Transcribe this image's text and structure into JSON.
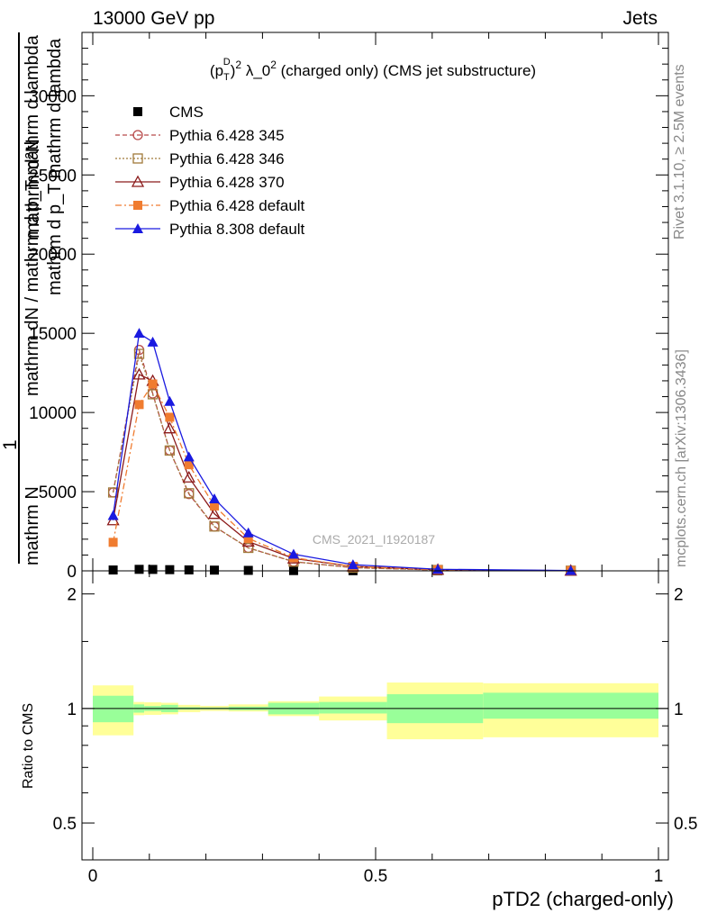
{
  "header": {
    "energy_label": "13000 GeV pp",
    "process_label": "Jets"
  },
  "side": {
    "rivet_label": "Rivet 3.1.10, ≥ 2.5M events",
    "mcplots_label": "mcplots.cern.ch [arXiv:1306.3436]"
  },
  "chart_data": {
    "type": "line",
    "title": "(p_T^D)^2 λ_0^2 (charged only) (CMS jet substructure)",
    "title_parts": {
      "pre": "(p",
      "sub1": "T",
      "sup1": "D",
      "mid": ")",
      "sup2": "2",
      "post1": " λ_0",
      "sup3": "2",
      "post2": " (charged only) (CMS jet substructure)"
    },
    "watermark": "CMS_2021_I1920187",
    "xlabel": "pTD2 (charged-only)",
    "ylabel": "1 / mathrm N  mathrm dN / mathrm d p_T mathrm d lambda",
    "ylabel_parts": {
      "numerator": "1",
      "denominator": "mathrm N",
      "main": "mathrm dN / mathrm d p_T mathrm d lambda",
      "overlay1": "mathrm d²N",
      "overlay2": "mathrm d p_T mathrm d lambda"
    },
    "ratio_ylabel": "Ratio to CMS",
    "xlim": [
      0,
      1
    ],
    "ylim": [
      0,
      34000
    ],
    "ratio_ylim": [
      0.4,
      2.3
    ],
    "x_ticks": [
      "0",
      "0.5",
      "1"
    ],
    "y_ticks": [
      "0",
      "5000",
      "10000",
      "15000",
      "20000",
      "25000",
      "30000"
    ],
    "ratio_ticks": [
      "0.5",
      "1",
      "2"
    ],
    "x": [
      0.036,
      0.082,
      0.106,
      0.136,
      0.17,
      0.215,
      0.275,
      0.355,
      0.46,
      0.61,
      0.845
    ],
    "series": [
      {
        "name": "CMS",
        "color": "#000000",
        "marker": "square-filled",
        "dash": "none",
        "values": [
          55,
          95,
          90,
          75,
          60,
          45,
          30,
          18,
          9,
          4,
          1
        ]
      },
      {
        "name": "Pythia 6.428 345",
        "color": "#b84a4a",
        "marker": "circle-open",
        "dash": "5,3",
        "values": [
          4950,
          13950,
          11200,
          7600,
          4850,
          2800,
          1450,
          580,
          200,
          55,
          10
        ]
      },
      {
        "name": "Pythia 6.428 346",
        "color": "#a07a3a",
        "marker": "square-open",
        "dash": "2,2",
        "values": [
          4950,
          13700,
          11150,
          7600,
          4900,
          2800,
          1450,
          580,
          200,
          55,
          10
        ]
      },
      {
        "name": "Pythia 6.428 370",
        "color": "#8b1a1a",
        "marker": "triangle-open",
        "dash": "none",
        "values": [
          3200,
          12400,
          12000,
          9000,
          5900,
          3600,
          1850,
          780,
          280,
          75,
          14
        ]
      },
      {
        "name": "Pythia 6.428 default",
        "color": "#f07c30",
        "marker": "square-filled",
        "dash": "7,3,2,3",
        "values": [
          1800,
          10500,
          11800,
          9700,
          6700,
          4100,
          2050,
          830,
          280,
          70,
          12
        ]
      },
      {
        "name": "Pythia 8.308 default",
        "color": "#1a1ae0",
        "marker": "triangle-filled",
        "dash": "none",
        "values": [
          3500,
          15000,
          14450,
          10700,
          7200,
          4550,
          2400,
          1050,
          390,
          100,
          18
        ]
      }
    ],
    "ratio_bands": {
      "bin_edges": [
        0.0,
        0.072,
        0.091,
        0.121,
        0.151,
        0.19,
        0.24,
        0.31,
        0.4,
        0.52,
        0.69,
        1.0
      ],
      "stat_low": [
        0.92,
        0.975,
        0.985,
        0.978,
        0.993,
        0.995,
        0.99,
        0.965,
        0.97,
        0.915,
        0.94,
        0.94
      ],
      "stat_high": [
        1.08,
        1.025,
        1.015,
        1.022,
        1.008,
        1.006,
        1.011,
        1.035,
        1.04,
        1.09,
        1.1,
        1.06
      ],
      "tot_low": [
        0.85,
        0.96,
        0.962,
        0.965,
        0.978,
        0.985,
        0.982,
        0.955,
        0.93,
        0.83,
        0.84,
        0.88
      ],
      "tot_high": [
        1.15,
        1.04,
        1.038,
        1.035,
        1.022,
        1.016,
        1.025,
        1.045,
        1.075,
        1.17,
        1.165,
        1.15
      ]
    },
    "colors": {
      "stat_band": "#99ff99",
      "total_band": "#ffff99",
      "ref_line": "#000000"
    }
  }
}
